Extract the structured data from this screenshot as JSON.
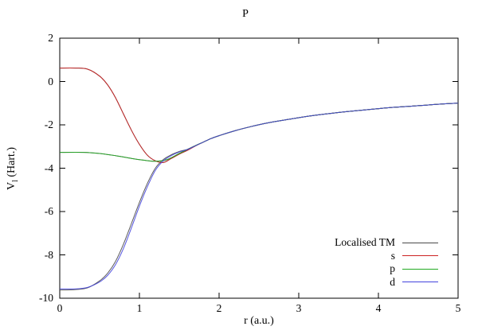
{
  "window": {
    "title": "P"
  },
  "chart_data": {
    "type": "line",
    "title": "P",
    "xlabel": "r (a.u.)",
    "ylabel": "V_l (Hart.)",
    "ylabel_parts": {
      "main": "V",
      "sub": "l",
      "rest": " (Hart.)"
    },
    "xlim": [
      0,
      5
    ],
    "ylim": [
      -10,
      2
    ],
    "xticks": [
      0,
      1,
      2,
      3,
      4,
      5
    ],
    "yticks": [
      2,
      0,
      -2,
      -4,
      -6,
      -8,
      -10
    ],
    "grid": false,
    "legend_position": "inside bottom-right",
    "axis_color": "#000000",
    "background_color": "#ffffff",
    "series": [
      {
        "key": "localised-tm",
        "name": "Localised TM",
        "color": "#4a4a4a",
        "curves": [
          [
            [
              0,
              0.62
            ],
            [
              0.2,
              0.62
            ],
            [
              0.35,
              0.57
            ],
            [
              0.5,
              0.25
            ],
            [
              0.6,
              -0.15
            ],
            [
              0.7,
              -0.75
            ],
            [
              0.8,
              -1.5
            ],
            [
              0.9,
              -2.25
            ],
            [
              1.0,
              -2.9
            ],
            [
              1.1,
              -3.4
            ],
            [
              1.2,
              -3.66
            ],
            [
              1.3,
              -3.74
            ],
            [
              1.4,
              -3.55
            ],
            [
              1.5,
              -3.35
            ],
            [
              1.6,
              -3.18
            ],
            [
              1.7,
              -2.98
            ],
            [
              1.8,
              -2.8
            ],
            [
              1.9,
              -2.63
            ],
            [
              2.0,
              -2.5
            ],
            [
              2.2,
              -2.27
            ],
            [
              2.4,
              -2.08
            ],
            [
              2.6,
              -1.92
            ],
            [
              2.8,
              -1.79
            ],
            [
              3.0,
              -1.67
            ],
            [
              3.2,
              -1.56
            ],
            [
              3.4,
              -1.47
            ],
            [
              3.6,
              -1.39
            ],
            [
              3.8,
              -1.32
            ],
            [
              4.0,
              -1.25
            ],
            [
              4.2,
              -1.19
            ],
            [
              4.4,
              -1.14
            ],
            [
              4.6,
              -1.09
            ],
            [
              4.8,
              -1.04
            ],
            [
              5.0,
              -1.0
            ]
          ],
          [
            [
              0,
              -3.27
            ],
            [
              0.3,
              -3.27
            ],
            [
              0.5,
              -3.32
            ],
            [
              0.7,
              -3.42
            ],
            [
              0.9,
              -3.55
            ],
            [
              1.05,
              -3.63
            ],
            [
              1.2,
              -3.68
            ],
            [
              1.35,
              -3.6
            ],
            [
              1.5,
              -3.32
            ],
            [
              1.6,
              -3.14
            ],
            [
              1.7,
              -2.96
            ],
            [
              1.8,
              -2.8
            ],
            [
              1.9,
              -2.63
            ],
            [
              2.0,
              -2.5
            ],
            [
              2.2,
              -2.27
            ],
            [
              2.4,
              -2.08
            ],
            [
              2.6,
              -1.92
            ],
            [
              2.8,
              -1.79
            ],
            [
              3.0,
              -1.67
            ],
            [
              3.2,
              -1.56
            ],
            [
              3.4,
              -1.47
            ],
            [
              3.6,
              -1.39
            ],
            [
              3.8,
              -1.32
            ],
            [
              4.0,
              -1.25
            ],
            [
              4.2,
              -1.19
            ],
            [
              4.4,
              -1.14
            ],
            [
              4.6,
              -1.09
            ],
            [
              4.8,
              -1.04
            ],
            [
              5.0,
              -1.0
            ]
          ],
          [
            [
              0,
              -9.62
            ],
            [
              0.2,
              -9.6
            ],
            [
              0.35,
              -9.52
            ],
            [
              0.5,
              -9.2
            ],
            [
              0.6,
              -8.85
            ],
            [
              0.7,
              -8.3
            ],
            [
              0.8,
              -7.5
            ],
            [
              0.9,
              -6.55
            ],
            [
              1.0,
              -5.58
            ],
            [
              1.1,
              -4.7
            ],
            [
              1.2,
              -4.0
            ],
            [
              1.3,
              -3.6
            ],
            [
              1.4,
              -3.38
            ],
            [
              1.5,
              -3.23
            ],
            [
              1.6,
              -3.13
            ],
            [
              1.7,
              -2.97
            ],
            [
              1.8,
              -2.8
            ],
            [
              1.9,
              -2.63
            ],
            [
              2.0,
              -2.5
            ],
            [
              2.2,
              -2.27
            ],
            [
              2.4,
              -2.08
            ],
            [
              2.6,
              -1.92
            ],
            [
              2.8,
              -1.79
            ],
            [
              3.0,
              -1.67
            ],
            [
              3.2,
              -1.56
            ],
            [
              3.4,
              -1.47
            ],
            [
              3.6,
              -1.39
            ],
            [
              3.8,
              -1.32
            ],
            [
              4.0,
              -1.25
            ],
            [
              4.2,
              -1.19
            ],
            [
              4.4,
              -1.14
            ],
            [
              4.6,
              -1.09
            ],
            [
              4.8,
              -1.04
            ],
            [
              5.0,
              -1.0
            ]
          ]
        ]
      },
      {
        "key": "s",
        "name": "s",
        "color": "#cc2222",
        "points": [
          [
            0,
            0.62
          ],
          [
            0.2,
            0.62
          ],
          [
            0.35,
            0.57
          ],
          [
            0.5,
            0.25
          ],
          [
            0.6,
            -0.15
          ],
          [
            0.7,
            -0.75
          ],
          [
            0.8,
            -1.5
          ],
          [
            0.9,
            -2.25
          ],
          [
            1.0,
            -2.9
          ],
          [
            1.1,
            -3.4
          ],
          [
            1.2,
            -3.66
          ],
          [
            1.3,
            -3.74
          ],
          [
            1.4,
            -3.55
          ],
          [
            1.5,
            -3.35
          ],
          [
            1.6,
            -3.18
          ],
          [
            1.7,
            -2.98
          ],
          [
            1.8,
            -2.8
          ],
          [
            1.9,
            -2.63
          ],
          [
            2.0,
            -2.5
          ],
          [
            2.2,
            -2.27
          ],
          [
            2.4,
            -2.08
          ],
          [
            2.6,
            -1.92
          ],
          [
            2.8,
            -1.79
          ],
          [
            3.0,
            -1.67
          ],
          [
            3.2,
            -1.56
          ],
          [
            3.4,
            -1.47
          ],
          [
            3.6,
            -1.39
          ],
          [
            3.8,
            -1.32
          ],
          [
            4.0,
            -1.25
          ],
          [
            4.2,
            -1.19
          ],
          [
            4.4,
            -1.14
          ],
          [
            4.6,
            -1.09
          ],
          [
            4.8,
            -1.04
          ],
          [
            5.0,
            -1.0
          ]
        ]
      },
      {
        "key": "p",
        "name": "p",
        "color": "#22aa22",
        "points": [
          [
            0,
            -3.27
          ],
          [
            0.3,
            -3.27
          ],
          [
            0.5,
            -3.32
          ],
          [
            0.7,
            -3.42
          ],
          [
            0.9,
            -3.55
          ],
          [
            1.05,
            -3.63
          ],
          [
            1.2,
            -3.68
          ],
          [
            1.35,
            -3.6
          ],
          [
            1.5,
            -3.32
          ],
          [
            1.6,
            -3.14
          ],
          [
            1.7,
            -2.96
          ],
          [
            1.8,
            -2.8
          ],
          [
            1.9,
            -2.63
          ],
          [
            2.0,
            -2.5
          ],
          [
            2.2,
            -2.27
          ],
          [
            2.4,
            -2.08
          ],
          [
            2.6,
            -1.92
          ],
          [
            2.8,
            -1.79
          ],
          [
            3.0,
            -1.67
          ],
          [
            3.2,
            -1.56
          ],
          [
            3.4,
            -1.47
          ],
          [
            3.6,
            -1.39
          ],
          [
            3.8,
            -1.32
          ],
          [
            4.0,
            -1.25
          ],
          [
            4.2,
            -1.19
          ],
          [
            4.4,
            -1.14
          ],
          [
            4.6,
            -1.09
          ],
          [
            4.8,
            -1.04
          ],
          [
            5.0,
            -1.0
          ]
        ]
      },
      {
        "key": "d",
        "name": "d",
        "color": "#4444dd",
        "points": [
          [
            0,
            -9.57
          ],
          [
            0.2,
            -9.57
          ],
          [
            0.35,
            -9.5
          ],
          [
            0.5,
            -9.25
          ],
          [
            0.6,
            -8.95
          ],
          [
            0.7,
            -8.45
          ],
          [
            0.8,
            -7.7
          ],
          [
            0.9,
            -6.75
          ],
          [
            1.0,
            -5.75
          ],
          [
            1.1,
            -4.85
          ],
          [
            1.2,
            -4.1
          ],
          [
            1.3,
            -3.66
          ],
          [
            1.4,
            -3.42
          ],
          [
            1.5,
            -3.25
          ],
          [
            1.6,
            -3.14
          ],
          [
            1.7,
            -2.97
          ],
          [
            1.8,
            -2.8
          ],
          [
            1.9,
            -2.63
          ],
          [
            2.0,
            -2.5
          ],
          [
            2.2,
            -2.27
          ],
          [
            2.4,
            -2.08
          ],
          [
            2.6,
            -1.92
          ],
          [
            2.8,
            -1.79
          ],
          [
            3.0,
            -1.67
          ],
          [
            3.2,
            -1.56
          ],
          [
            3.4,
            -1.47
          ],
          [
            3.6,
            -1.39
          ],
          [
            3.8,
            -1.32
          ],
          [
            4.0,
            -1.25
          ],
          [
            4.2,
            -1.19
          ],
          [
            4.4,
            -1.14
          ],
          [
            4.6,
            -1.09
          ],
          [
            4.8,
            -1.04
          ],
          [
            5.0,
            -1.0
          ]
        ]
      }
    ]
  }
}
